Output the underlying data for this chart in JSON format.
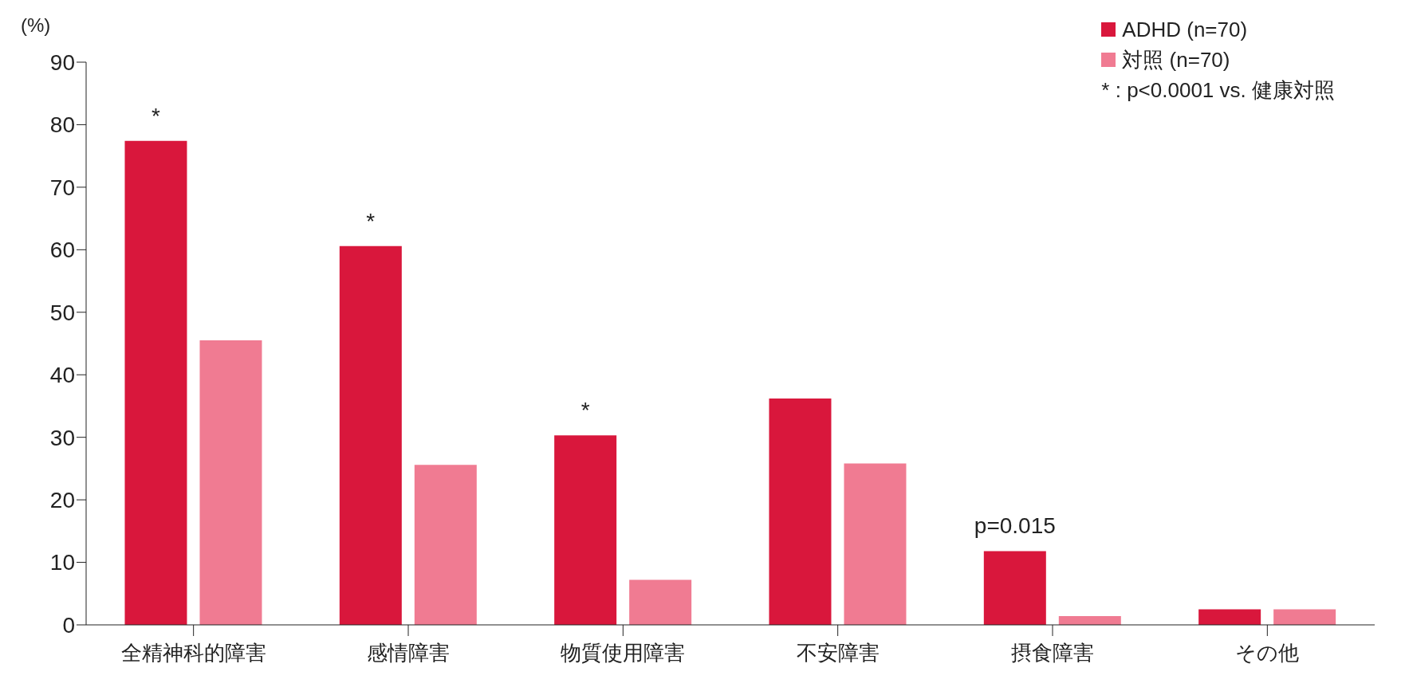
{
  "chart_data": {
    "type": "bar",
    "ylabel": "(%)",
    "categories": [
      "全精神科的障害",
      "感情障害",
      "物質使用障害",
      "不安障害",
      "摂食障害",
      "その他"
    ],
    "series": [
      {
        "name": "ADHD (n=70)",
        "color": "#d9173c",
        "values": [
          77.4,
          60.6,
          30.3,
          36.2,
          11.8,
          2.5
        ],
        "value_labels": [
          "*",
          "*",
          "*",
          null,
          null,
          null
        ]
      },
      {
        "name": "対照 (n=70)",
        "color": "#f07b92",
        "values": [
          45.5,
          25.6,
          7.2,
          25.8,
          1.4,
          2.5
        ]
      }
    ],
    "ylim": [
      0,
      90
    ],
    "yticks": [
      0,
      10,
      20,
      30,
      40,
      50,
      60,
      70,
      80,
      90
    ],
    "grid": false,
    "legend": "top right",
    "annotations": [
      "p=0.015",
      "* : p<0.0001 vs. 健康対照"
    ]
  }
}
